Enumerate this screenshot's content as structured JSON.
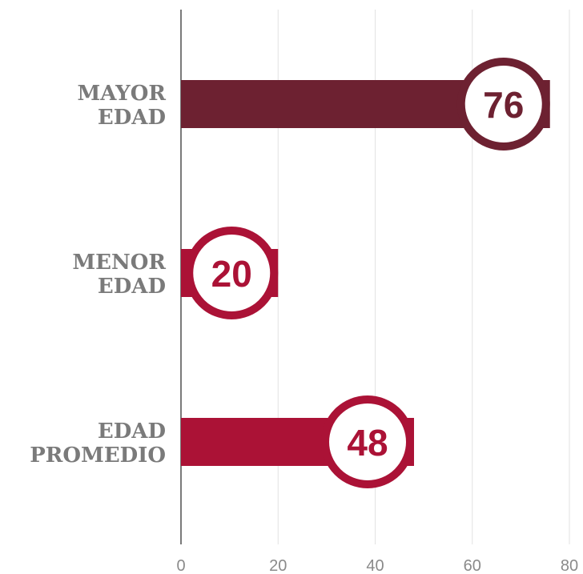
{
  "chart_data": {
    "type": "bar",
    "orientation": "horizontal",
    "categories": [
      "MAYOR EDAD",
      "MENOR EDAD",
      "EDAD PROMEDIO"
    ],
    "values": [
      76,
      20,
      48
    ],
    "colors": [
      "#6d2131",
      "#ab1236",
      "#ab1236"
    ],
    "xlim": [
      0,
      80
    ],
    "xticks": [
      0,
      20,
      40,
      60,
      80
    ],
    "grid": true
  }
}
